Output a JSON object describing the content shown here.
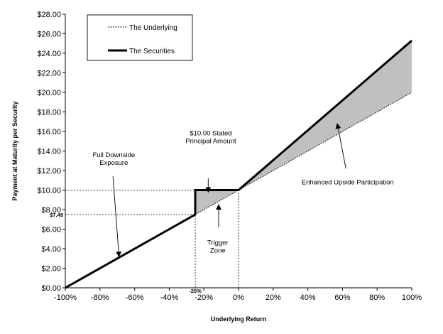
{
  "chart_data": {
    "type": "line",
    "title": "",
    "xlabel": "Underlying Return",
    "ylabel": "Payment at Maturity per Security",
    "xlim": [
      -100,
      100
    ],
    "ylim": [
      0,
      28
    ],
    "x_ticks": [
      "-100%",
      "-80%",
      "-60%",
      "-40%",
      "-20%",
      "0%",
      "20%",
      "40%",
      "60%",
      "80%",
      "100%"
    ],
    "x_tick_values": [
      -100,
      -80,
      -60,
      -40,
      -20,
      0,
      20,
      40,
      60,
      80,
      100
    ],
    "y_ticks": [
      "$0.00",
      "$2.00",
      "$4.00",
      "$6.00",
      "$8.00",
      "$10.00",
      "$12.00",
      "$14.00",
      "$16.00",
      "$18.00",
      "$20.00",
      "$22.00",
      "$24.00",
      "$26.00",
      "$28.00"
    ],
    "y_tick_values": [
      0,
      2,
      4,
      6,
      8,
      10,
      12,
      14,
      16,
      18,
      20,
      22,
      24,
      26,
      28
    ],
    "grid": false,
    "legend_position": "top-left",
    "series": [
      {
        "name": "The Underlying",
        "style": "dashed",
        "color": "#000000",
        "points": [
          [
            -100,
            0
          ],
          [
            100,
            20
          ]
        ]
      },
      {
        "name": "The Securities",
        "style": "solid-thick",
        "color": "#000000",
        "points": [
          [
            -100,
            0
          ],
          [
            -25,
            7.5
          ],
          [
            -25,
            10
          ],
          [
            0,
            10
          ],
          [
            100,
            25.3
          ]
        ]
      }
    ],
    "shaded_regions": [
      {
        "color": "#c0c0c0",
        "polygon": [
          [
            -25,
            7.5
          ],
          [
            -25,
            10
          ],
          [
            0,
            10
          ]
        ]
      },
      {
        "color": "#c0c0c0",
        "polygon": [
          [
            0,
            10
          ],
          [
            100,
            25.3
          ],
          [
            100,
            20
          ]
        ]
      }
    ],
    "reference_lines": [
      {
        "points": [
          [
            -100,
            10
          ],
          [
            0,
            10
          ]
        ]
      },
      {
        "points": [
          [
            0,
            0
          ],
          [
            0,
            10
          ]
        ]
      },
      {
        "points": [
          [
            -100,
            7.5
          ],
          [
            -25,
            7.5
          ]
        ]
      },
      {
        "points": [
          [
            -25,
            0
          ],
          [
            -25,
            7.5
          ]
        ]
      }
    ],
    "annotations": [
      {
        "lines": [
          "$10.00 Stated",
          "Principal Amount"
        ],
        "text_at": [
          -16,
          15.6
        ],
        "arrow_from": [
          -17.5,
          11.2
        ],
        "arrow_to": [
          -17.5,
          9.8
        ]
      },
      {
        "lines": [
          "Full Downside",
          "Exposure"
        ],
        "text_at": [
          -72,
          13.4
        ],
        "arrow_from": [
          -72.5,
          11.4
        ],
        "arrow_to": [
          -69,
          3.2
        ]
      },
      {
        "lines": [
          "Enhanced Upside Participation"
        ],
        "text_at": [
          63,
          10.6
        ],
        "arrow_from": [
          62,
          12.2
        ],
        "arrow_to": [
          57,
          16.8
        ]
      },
      {
        "lines": [
          "Trigger",
          "Zone"
        ],
        "text_at": [
          -12,
          4.4
        ],
        "arrow_from": [
          -11.5,
          6.2
        ],
        "arrow_to": [
          -11.5,
          8.5
        ]
      }
    ],
    "value_labels": [
      {
        "text": "$7.49",
        "at": "y-axis",
        "y": 7.5
      },
      {
        "text": "-25%",
        "at": "x-axis",
        "x": -25
      }
    ]
  }
}
